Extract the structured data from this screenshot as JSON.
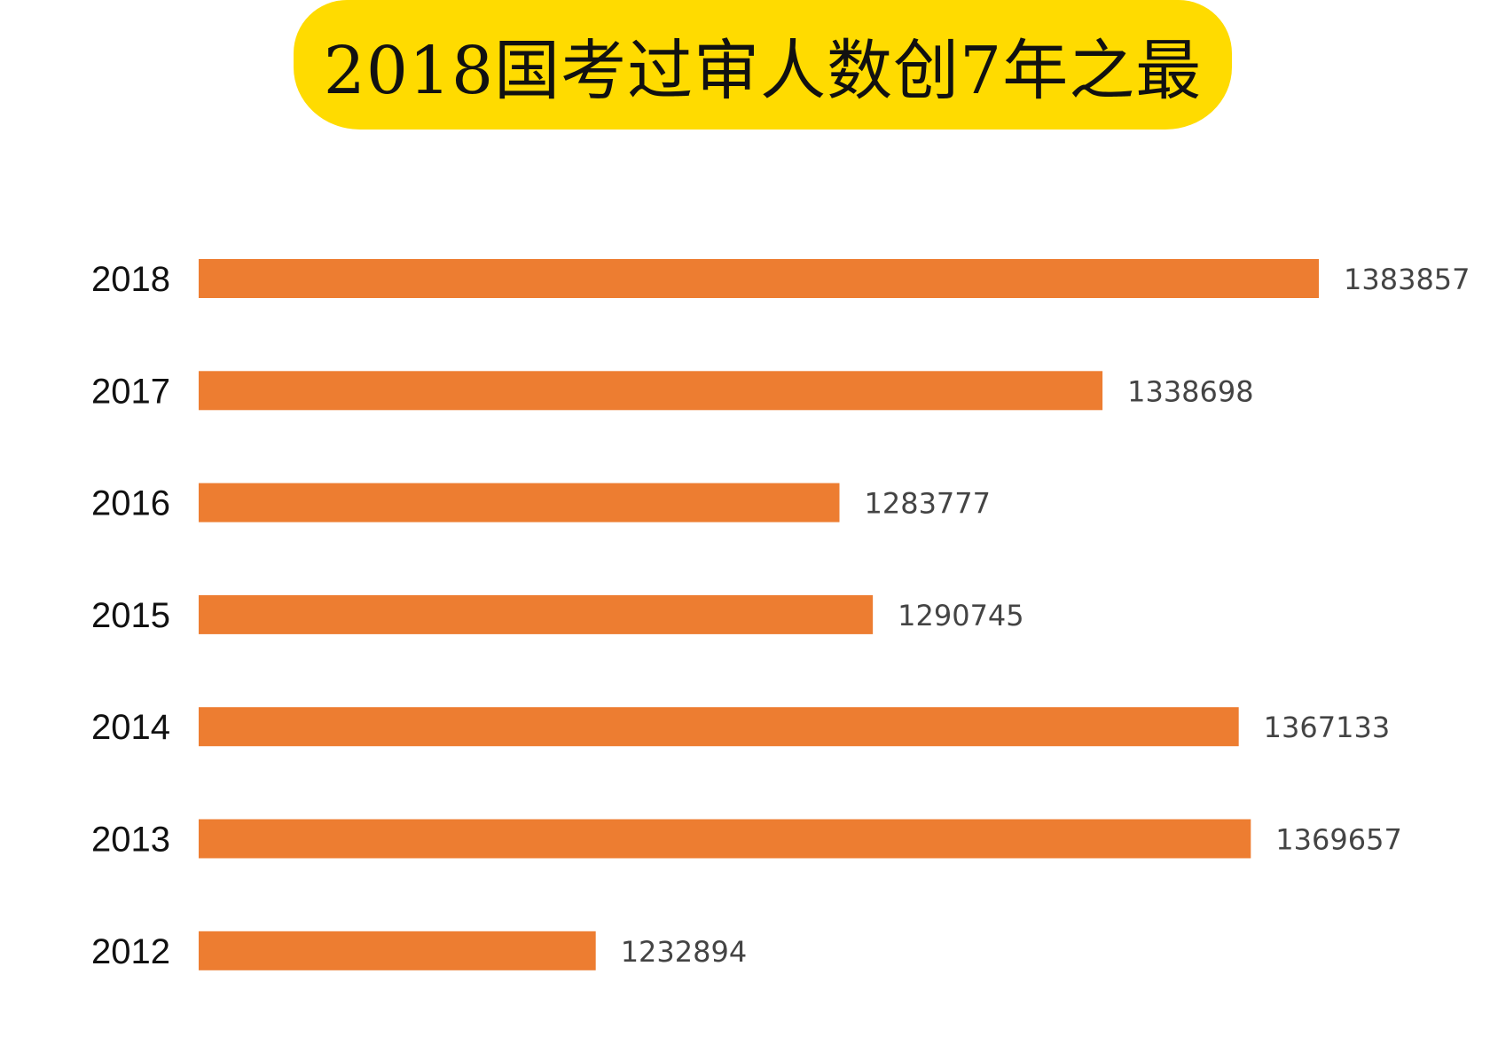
{
  "title": "2018国考过审人数创7年之最",
  "colors": {
    "banner": "#FFDB00",
    "bar": "#ED7D31"
  },
  "chart_data": {
    "type": "bar",
    "orientation": "horizontal",
    "title": "2018国考过审人数创7年之最",
    "xlabel": "",
    "ylabel": "",
    "grid": false,
    "categories": [
      "2018",
      "2017",
      "2016",
      "2015",
      "2014",
      "2013",
      "2012"
    ],
    "series": [
      {
        "values": [
          1383857,
          1338698,
          1283777,
          1290745,
          1367133,
          1369657,
          1232894
        ]
      }
    ]
  }
}
